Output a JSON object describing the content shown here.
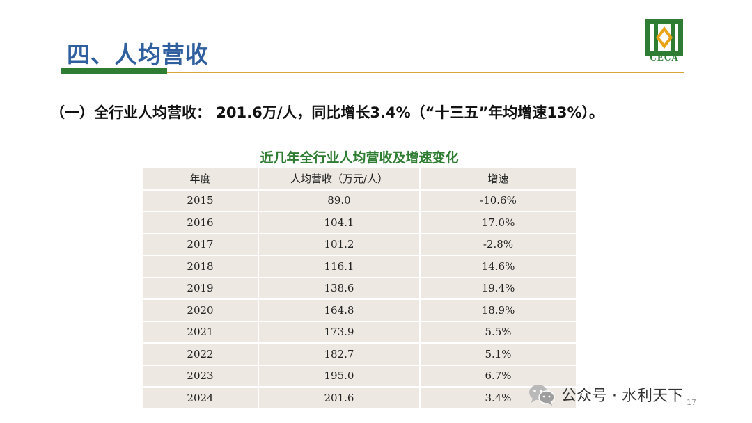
{
  "slide": {
    "title": "四、人均营收",
    "headline": "（一）全行业人均营收： 201.6万/人，同比增长3.4%（“十三五”年均增速13%）。",
    "logo_text": "CECA",
    "page_number": "17"
  },
  "table": {
    "title": "近几年全行业人均营收及增速变化",
    "headers": [
      "年度",
      "人均营收（万元/人）",
      "增速"
    ],
    "rows": [
      [
        "2015",
        "89.0",
        "-10.6%"
      ],
      [
        "2016",
        "104.1",
        "17.0%"
      ],
      [
        "2017",
        "101.2",
        "-2.8%"
      ],
      [
        "2018",
        "116.1",
        "14.6%"
      ],
      [
        "2019",
        "138.6",
        "19.4%"
      ],
      [
        "2020",
        "164.8",
        "18.9%"
      ],
      [
        "2021",
        "173.9",
        "5.5%"
      ],
      [
        "2022",
        "182.7",
        "5.1%"
      ],
      [
        "2023",
        "195.0",
        "6.7%"
      ],
      [
        "2024",
        "201.6",
        "3.4%"
      ]
    ],
    "highlight_color": "#d32f2f"
  },
  "watermark": {
    "text": "公众号 · 水利天下",
    "icon": "wechat-icon"
  },
  "colors": {
    "title": "#2f5f9e",
    "accent_green": "#2e7d32",
    "accent_gold": "#d9a63a",
    "table_bg": "#ede9e2"
  }
}
